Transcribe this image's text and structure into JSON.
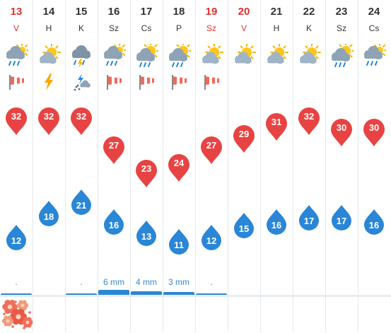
{
  "forecast": {
    "days": [
      {
        "num": "13",
        "abbr": "V",
        "weekend": true,
        "icon": "cloud-sun-rain-icon",
        "sub": "wind-sock-icon",
        "max": "32",
        "min": "12",
        "precip": ".",
        "precip_level": 0.15,
        "pollen": true
      },
      {
        "num": "14",
        "abbr": "H",
        "weekend": false,
        "icon": "sun-cloud-icon",
        "sub": "lightning-icon",
        "max": "32",
        "min": "18",
        "precip": "",
        "precip_level": 0,
        "pollen": false
      },
      {
        "num": "15",
        "abbr": "K",
        "weekend": false,
        "icon": "cloud-storm-rain-icon",
        "sub": "hail-icon",
        "max": "32",
        "min": "21",
        "precip": ".",
        "precip_level": 0.15,
        "pollen": false
      },
      {
        "num": "16",
        "abbr": "Sz",
        "weekend": false,
        "icon": "cloud-sun-rain-icon",
        "sub": "wind-sock-icon",
        "max": "27",
        "min": "16",
        "precip": "6 mm",
        "precip_level": 1.0,
        "pollen": false
      },
      {
        "num": "17",
        "abbr": "Cs",
        "weekend": false,
        "icon": "sun-cloud-rain-icon",
        "sub": "wind-sock-icon",
        "max": "23",
        "min": "13",
        "precip": "4 mm",
        "precip_level": 0.67,
        "pollen": false
      },
      {
        "num": "18",
        "abbr": "P",
        "weekend": false,
        "icon": "sun-cloud-rain-icon",
        "sub": "wind-sock-icon",
        "max": "24",
        "min": "11",
        "precip": "3 mm",
        "precip_level": 0.5,
        "pollen": false
      },
      {
        "num": "19",
        "abbr": "Sz",
        "weekend": true,
        "icon": "sun-cloud-icon",
        "sub": "wind-sock-icon",
        "max": "27",
        "min": "12",
        "precip": ".",
        "precip_level": 0.15,
        "pollen": false
      },
      {
        "num": "20",
        "abbr": "V",
        "weekend": true,
        "icon": "sun-cloud-icon",
        "sub": "",
        "max": "29",
        "min": "15",
        "precip": "",
        "precip_level": 0,
        "pollen": false
      },
      {
        "num": "21",
        "abbr": "H",
        "weekend": false,
        "icon": "sun-cloud-icon",
        "sub": "",
        "max": "31",
        "min": "16",
        "precip": "",
        "precip_level": 0,
        "pollen": false
      },
      {
        "num": "22",
        "abbr": "K",
        "weekend": false,
        "icon": "sun-cloud-icon",
        "sub": "",
        "max": "32",
        "min": "17",
        "precip": "",
        "precip_level": 0,
        "pollen": false
      },
      {
        "num": "23",
        "abbr": "Sz",
        "weekend": false,
        "icon": "sun-cloud-rain-icon",
        "sub": "",
        "max": "30",
        "min": "17",
        "precip": "",
        "precip_level": 0,
        "pollen": false
      },
      {
        "num": "24",
        "abbr": "Cs",
        "weekend": false,
        "icon": "cloud-sun-rain-icon",
        "sub": "",
        "max": "30",
        "min": "16",
        "precip": "",
        "precip_level": 0,
        "pollen": false
      }
    ],
    "colors": {
      "max": "#e84343",
      "min": "#2a86d6",
      "weekend": "#e03131",
      "precip": "#3a8ad0"
    }
  }
}
